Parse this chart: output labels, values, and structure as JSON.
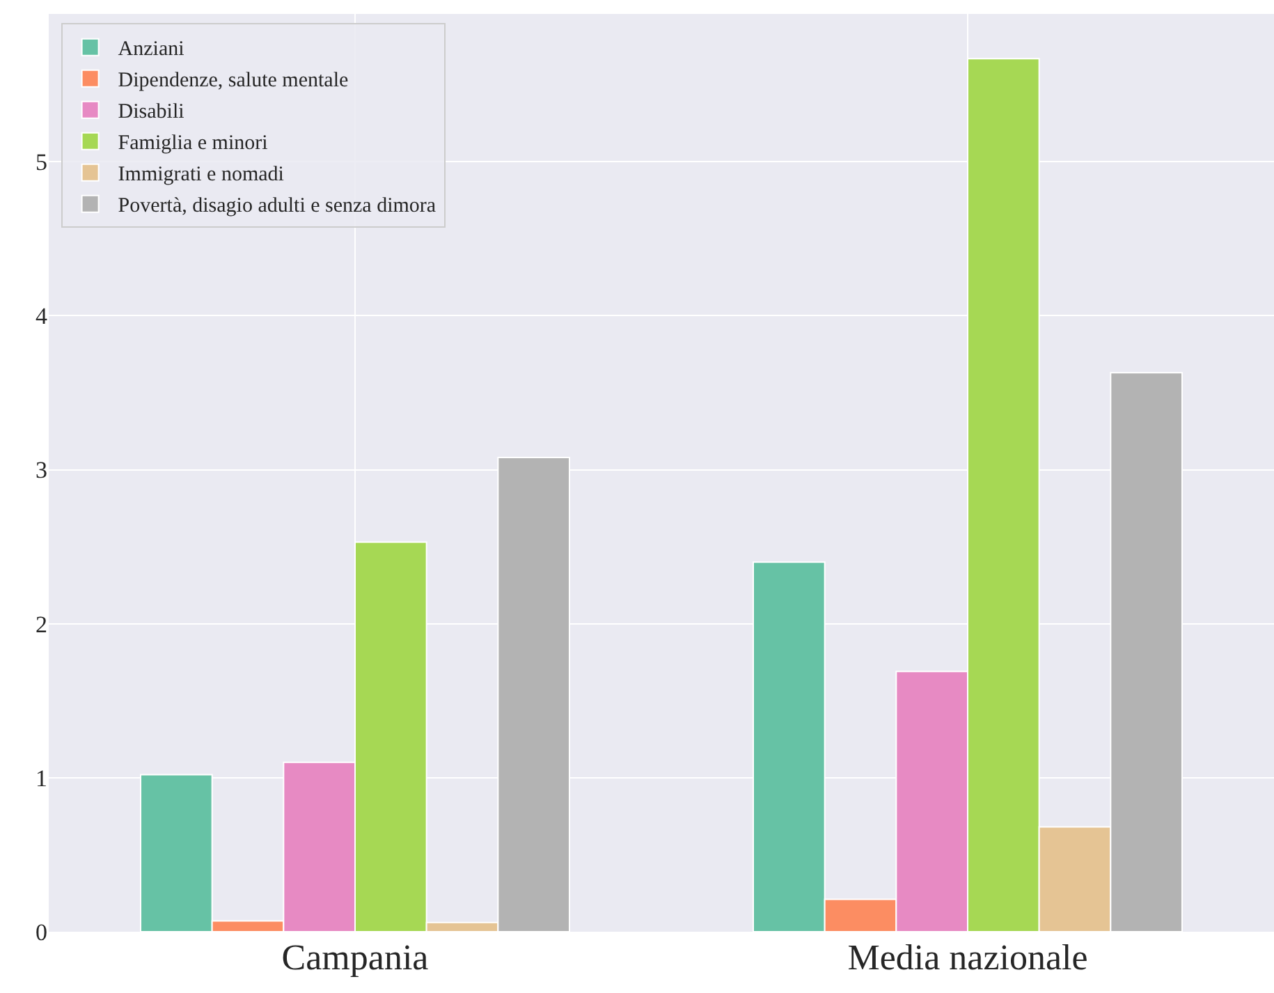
{
  "chart_data": {
    "type": "bar",
    "categories": [
      "Campania",
      "Media nazionale"
    ],
    "series": [
      {
        "name": "Anziani",
        "color": "#66c2a5",
        "values": [
          1.02,
          2.4
        ]
      },
      {
        "name": "Dipendenze, salute mentale",
        "color": "#fc8d62",
        "values": [
          0.07,
          0.21
        ]
      },
      {
        "name": "Disabili",
        "color": "#e78ac3",
        "values": [
          1.1,
          1.69
        ]
      },
      {
        "name": "Famiglia e minori",
        "color": "#a6d854",
        "values": [
          2.53,
          5.67
        ]
      },
      {
        "name": "Immigrati e nomadi",
        "color": "#e5c494",
        "values": [
          0.06,
          0.68
        ]
      },
      {
        "name": "Povertà, disagio adulti e senza dimora",
        "color": "#b3b3b3",
        "values": [
          3.08,
          3.63
        ]
      }
    ],
    "ylim": [
      0,
      5.96
    ],
    "yticks": [
      0,
      1,
      2,
      3,
      4,
      5
    ],
    "grid": true,
    "legend": "top left"
  }
}
